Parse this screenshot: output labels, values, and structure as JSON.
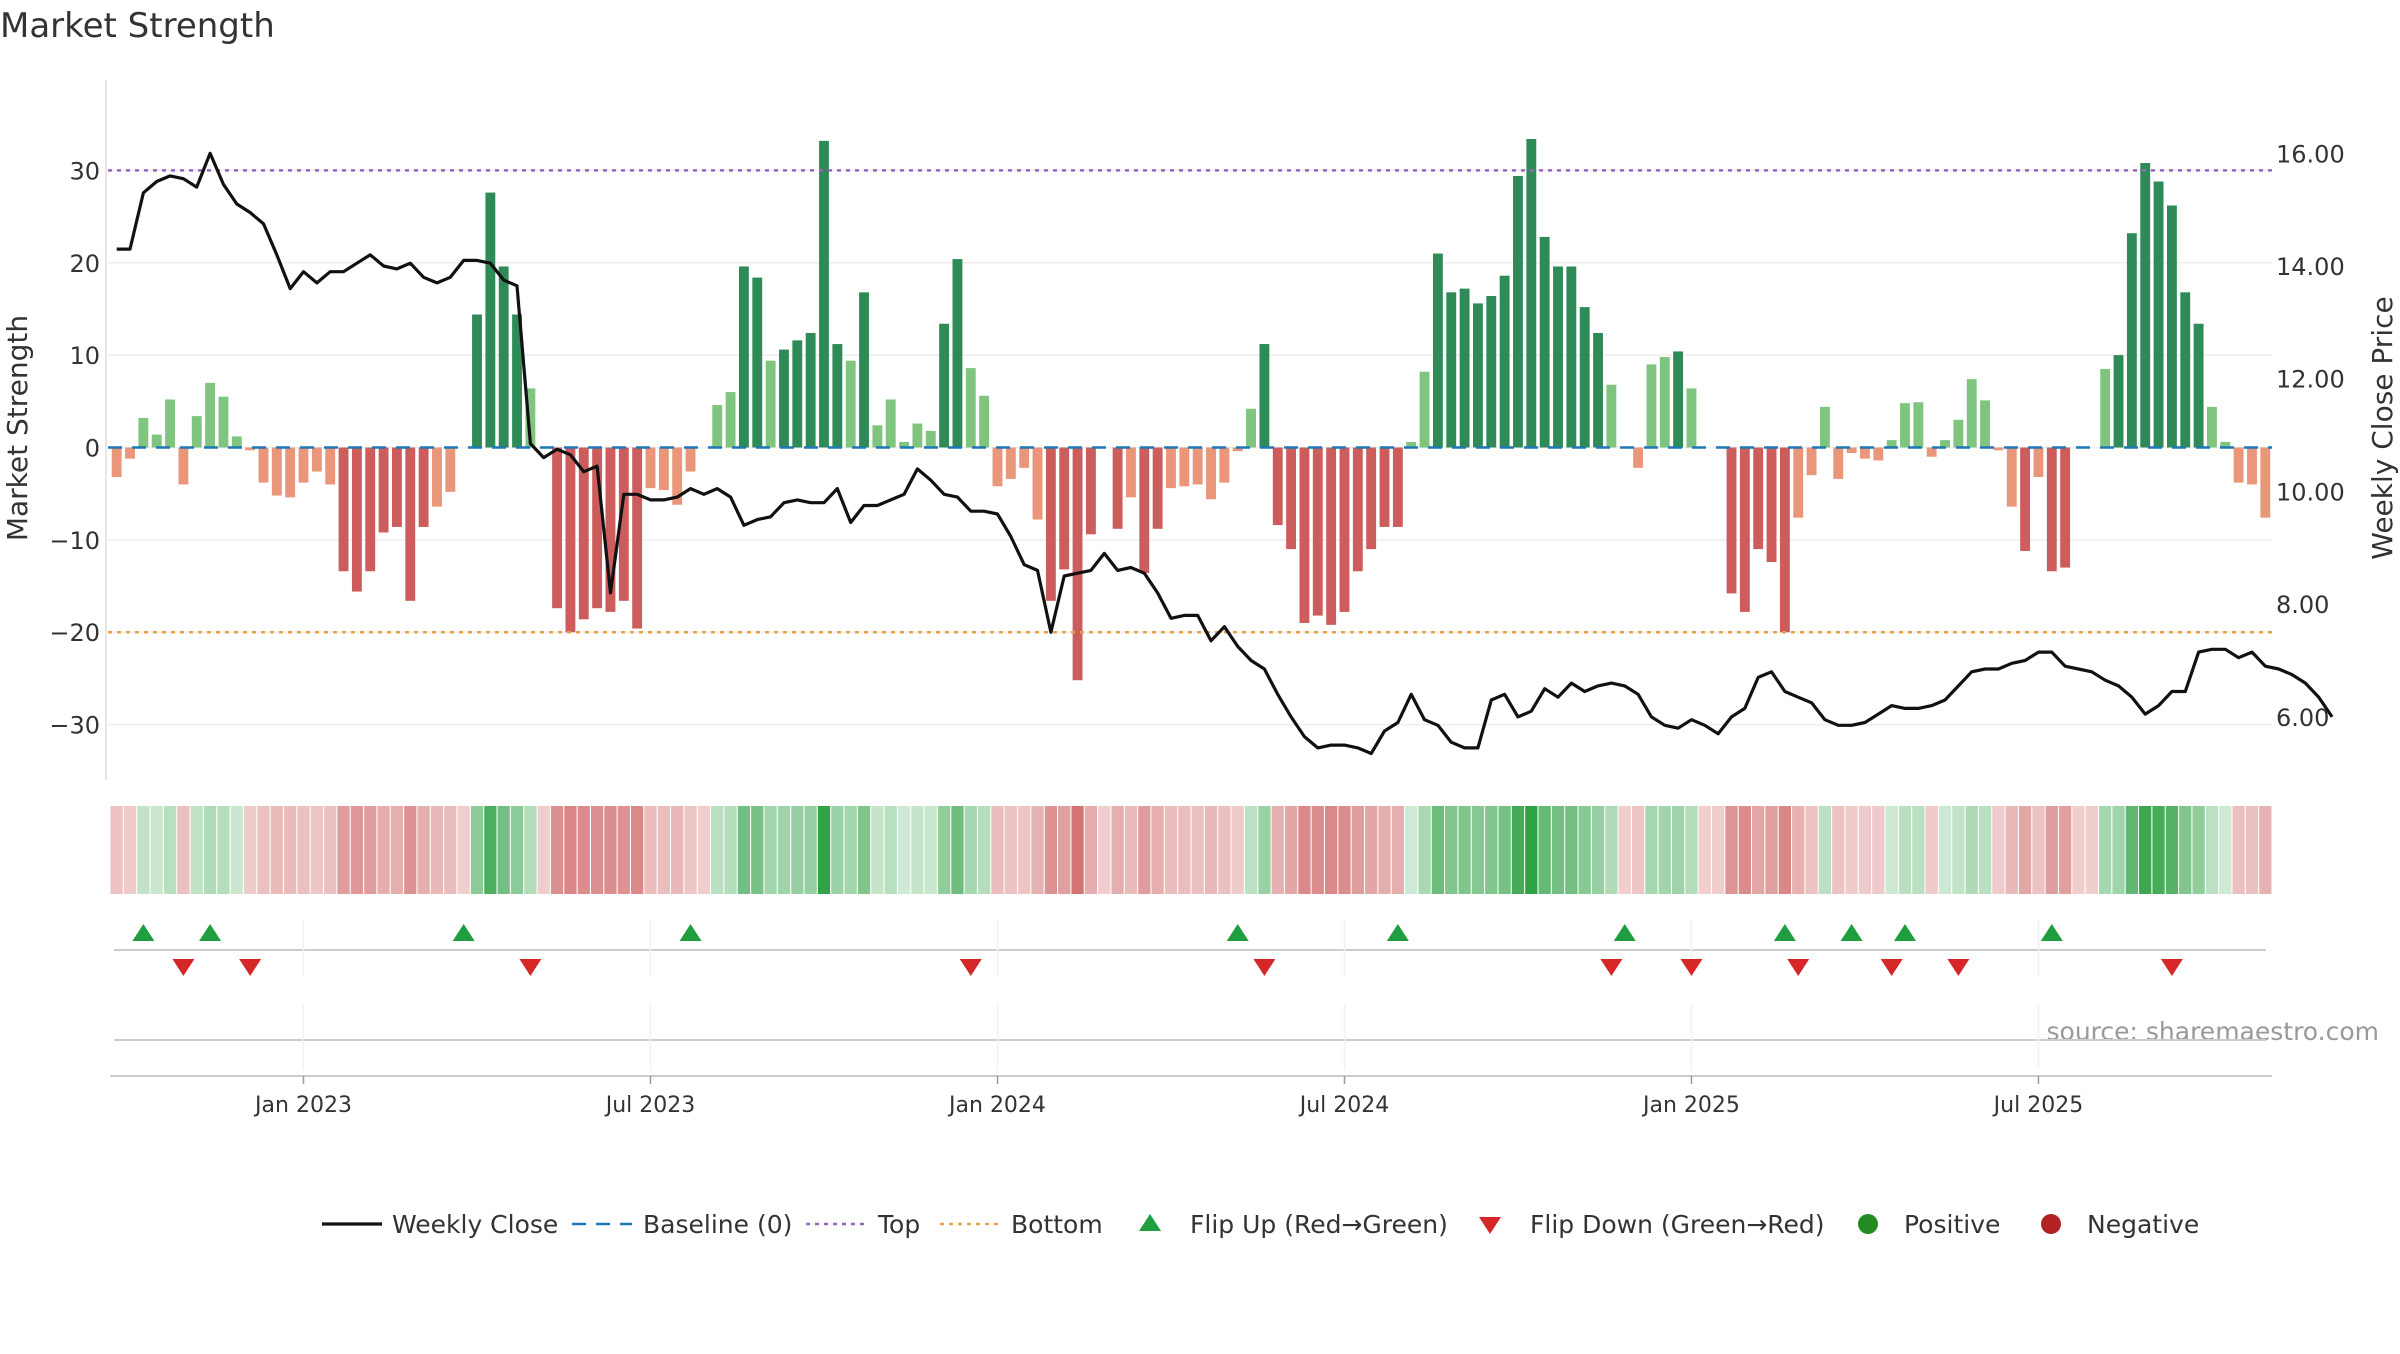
{
  "chart_data": {
    "type": "bar",
    "title": "Market Strength",
    "ylabel_left": "Market Strength",
    "ylabel_right": "Weekly Close Price",
    "ylim_left": [
      -36,
      36
    ],
    "ylim_right": [
      4.88,
      16.68
    ],
    "y_ticks_left": [
      {
        "v": 30,
        "label": "30"
      },
      {
        "v": 20,
        "label": "20"
      },
      {
        "v": 10,
        "label": "10"
      },
      {
        "v": 0,
        "label": "0"
      },
      {
        "v": -10,
        "label": "−10"
      },
      {
        "v": -20,
        "label": "−20"
      },
      {
        "v": -30,
        "label": "−30"
      }
    ],
    "y_ticks_right": [
      "16.00",
      "14.00",
      "12.00",
      "10.00",
      "8.00",
      "6.00"
    ],
    "x_ticks": [
      {
        "label": "Jan 2023",
        "i": 14
      },
      {
        "label": "Jul 2023",
        "i": 40
      },
      {
        "label": "Jan 2024",
        "i": 66
      },
      {
        "label": "Jul 2024",
        "i": 92
      },
      {
        "label": "Jan 2025",
        "i": 118
      },
      {
        "label": "Jul 2025",
        "i": 144
      }
    ],
    "top_line": 30,
    "bottom_line": -20,
    "source_note": "source: sharemaestro.com",
    "strength": [
      -3.2,
      -1.2,
      3.2,
      1.4,
      5.2,
      -4,
      3.4,
      7,
      5.5,
      1.2,
      -0.3,
      -3.8,
      -5.2,
      -5.4,
      -3.8,
      -2.6,
      -4,
      -13.4,
      -15.6,
      -13.4,
      -9.2,
      -8.6,
      -16.6,
      -8.6,
      -6.4,
      -4.8,
      0,
      14.4,
      27.6,
      19.6,
      14.4,
      6.4,
      0,
      -17.4,
      -20,
      -18.6,
      -17.4,
      -17.8,
      -16.6,
      -19.6,
      -4.4,
      -4.6,
      -6.2,
      -2.6,
      0,
      4.6,
      6,
      19.6,
      18.4,
      9.4,
      10.6,
      11.6,
      12.4,
      33.2,
      11.2,
      9.4,
      16.8,
      2.4,
      5.2,
      0.6,
      2.6,
      1.8,
      13.4,
      20.4,
      8.6,
      5.6,
      -4.2,
      -3.4,
      -2.2,
      -7.8,
      -16.6,
      -13.2,
      -25.2,
      -9.4,
      0,
      -8.8,
      -5.4,
      -13.6,
      -8.8,
      -4.4,
      -4.2,
      -4,
      -5.6,
      -3.8,
      -0.4,
      4.2,
      11.2,
      -8.4,
      -11,
      -19,
      -18.2,
      -19.2,
      -17.8,
      -13.4,
      -11,
      -8.6,
      -8.6,
      0.6,
      8.2,
      21,
      16.8,
      17.2,
      15.6,
      16.4,
      18.6,
      29.4,
      33.4,
      22.8,
      19.6,
      19.6,
      15.2,
      12.4,
      6.8,
      0,
      -2.2,
      9,
      9.8,
      10.4,
      6.4,
      0,
      0,
      -15.8,
      -17.8,
      -11,
      -12.4,
      -20,
      -7.6,
      -3,
      4.4,
      -3.4,
      -0.6,
      -1.2,
      -1.4,
      0.8,
      4.8,
      4.9,
      -1,
      0.8,
      3,
      7.4,
      5.1,
      -0.3,
      -6.4,
      -11.2,
      -3.2,
      -13.4,
      -13,
      0,
      0,
      8.5,
      10,
      23.2,
      30.8,
      28.8,
      26.2,
      16.8,
      13.4,
      4.4,
      0.6,
      -3.8,
      -4,
      -7.6
    ],
    "weekly_close": [
      14.3,
      14.3,
      15.3,
      15.5,
      15.6,
      15.55,
      15.4,
      16.0,
      15.45,
      15.1,
      14.95,
      14.75,
      14.2,
      13.6,
      13.9,
      13.7,
      13.9,
      13.9,
      14.05,
      14.2,
      14.0,
      13.95,
      14.05,
      13.8,
      13.7,
      13.8,
      14.1,
      14.1,
      14.05,
      13.75,
      13.65,
      10.85,
      10.6,
      10.75,
      10.65,
      10.35,
      10.45,
      8.2,
      9.95,
      9.95,
      9.85,
      9.85,
      9.9,
      10.05,
      9.95,
      10.05,
      9.9,
      9.4,
      9.5,
      9.55,
      9.8,
      9.85,
      9.8,
      9.8,
      10.05,
      9.45,
      9.75,
      9.75,
      9.85,
      9.95,
      10.4,
      10.2,
      9.95,
      9.9,
      9.65,
      9.65,
      9.6,
      9.2,
      8.7,
      8.6,
      7.5,
      8.5,
      8.55,
      8.6,
      8.9,
      8.6,
      8.65,
      8.55,
      8.2,
      7.75,
      7.8,
      7.8,
      7.35,
      7.6,
      7.25,
      7.0,
      6.85,
      6.4,
      6.0,
      5.65,
      5.45,
      5.5,
      5.5,
      5.45,
      5.35,
      5.75,
      5.9,
      6.4,
      5.95,
      5.85,
      5.55,
      5.45,
      5.45,
      6.3,
      6.4,
      6.0,
      6.1,
      6.5,
      6.35,
      6.6,
      6.45,
      6.55,
      6.6,
      6.55,
      6.4,
      6.0,
      5.85,
      5.8,
      5.95,
      5.85,
      5.7,
      6.0,
      6.15,
      6.7,
      6.8,
      6.45,
      6.35,
      6.25,
      5.95,
      5.85,
      5.85,
      5.9,
      6.05,
      6.2,
      6.15,
      6.15,
      6.2,
      6.3,
      6.55,
      6.8,
      6.85,
      6.85,
      6.95,
      7.0,
      7.15,
      7.15,
      6.9,
      6.85,
      6.8,
      6.65,
      6.55,
      6.35,
      6.05,
      6.2,
      6.45,
      6.45,
      7.15,
      7.2,
      7.2,
      7.05,
      7.15,
      6.9,
      6.85,
      6.75,
      6.6,
      6.35,
      6.0
    ],
    "flip_up_x": [
      2,
      7,
      26,
      43,
      84,
      96,
      113,
      125,
      130,
      134,
      145
    ],
    "flip_down_x": [
      5,
      10,
      31,
      64,
      86,
      112,
      118,
      126,
      133,
      138,
      154
    ]
  },
  "legend": [
    {
      "key": "weekly_close",
      "label": "Weekly Close",
      "kind": "line",
      "color": "#111111"
    },
    {
      "key": "baseline",
      "label": "Baseline (0)",
      "kind": "dash",
      "color": "#1f77b4"
    },
    {
      "key": "top",
      "label": "Top",
      "kind": "dot",
      "color": "#9467bd"
    },
    {
      "key": "bottom",
      "label": "Bottom",
      "kind": "dot",
      "color": "#e8a04a"
    },
    {
      "key": "flip_up",
      "label": "Flip Up (Red→Green)",
      "kind": "triangle-up",
      "color": "#1e9e3e"
    },
    {
      "key": "flip_down",
      "label": "Flip Down (Green→Red)",
      "kind": "triangle-down",
      "color": "#d62728"
    },
    {
      "key": "positive",
      "label": "Positive",
      "kind": "circle",
      "color": "#228b22"
    },
    {
      "key": "negative",
      "label": "Negative",
      "kind": "circle",
      "color": "#b22222"
    }
  ],
  "colors": {
    "pos_strong": "#2e8b57",
    "pos_weak": "#7fc47f",
    "neg_strong": "#cd5c5c",
    "neg_weak": "#e9967a",
    "baseline": "#1f77b4",
    "top_line": "#9467bd",
    "bottom_line": "#e8a04a",
    "close_line": "#111111"
  }
}
